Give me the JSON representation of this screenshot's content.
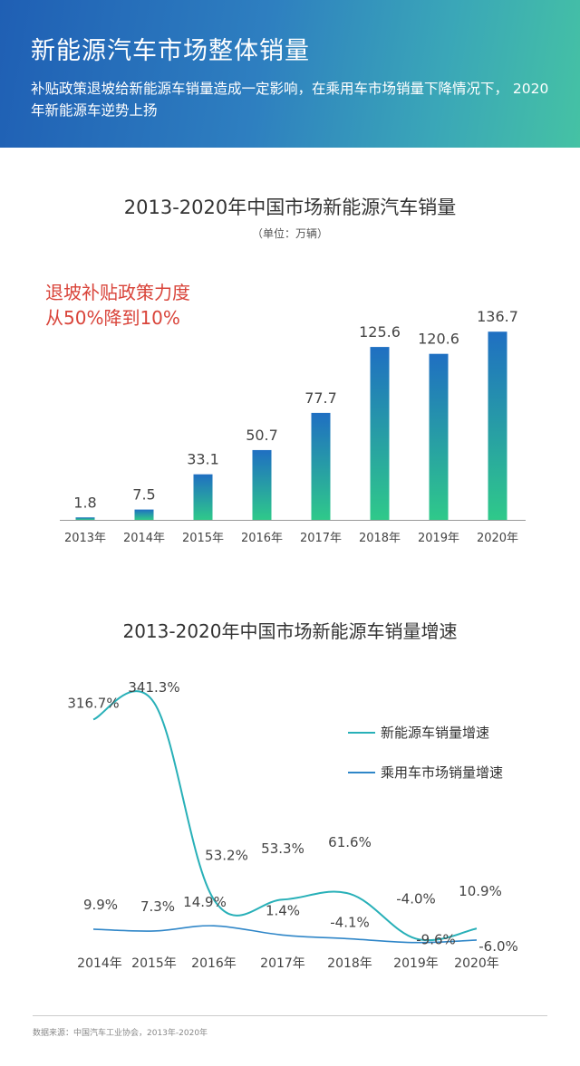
{
  "header": {
    "title": "新能源汽车市场整体销量",
    "subtitle": "补贴政策退坡给新能源车销量造成一定影响，在乘用车市场销量下降情况下， 2020年新能源车逆势上扬"
  },
  "annotation": {
    "line1": "退坡补贴政策力度",
    "line2": "从50%降到10%"
  },
  "colors": {
    "bar_top": "#1f6fc2",
    "bar_bottom": "#2fc98a",
    "ev_line": "#28b0b8",
    "pv_line": "#2f86c8"
  },
  "chart_data": [
    {
      "type": "bar",
      "title": "2013-2020年中国市场新能源汽车销量",
      "subtitle": "（单位：万辆）",
      "categories": [
        "2013年",
        "2014年",
        "2015年",
        "2016年",
        "2017年",
        "2018年",
        "2019年",
        "2020年"
      ],
      "values": [
        1.8,
        7.5,
        33.1,
        50.7,
        77.7,
        125.6,
        120.6,
        136.7
      ],
      "value_labels": [
        "1.8",
        "7.5",
        "33.1",
        "50.7",
        "77.7",
        "125.6",
        "120.6",
        "136.7"
      ],
      "ylim": [
        0,
        150
      ],
      "grid": false
    },
    {
      "type": "line",
      "title": "2013-2020年中国市场新能源车销量增速",
      "categories": [
        "2014年",
        "2015年",
        "2016年",
        "2017年",
        "2018年",
        "2019年",
        "2020年"
      ],
      "legend_position": "right",
      "series": [
        {
          "name": "新能源车销量增速",
          "values": [
            316.7,
            341.3,
            53.2,
            53.3,
            61.6,
            -4.0,
            10.9
          ],
          "labels": [
            "316.7%",
            "341.3%",
            "53.2%",
            "53.3%",
            "61.6%",
            "-4.0%",
            "10.9%"
          ]
        },
        {
          "name": "乘用车市场销量增速",
          "values": [
            9.9,
            7.3,
            14.9,
            1.4,
            -4.1,
            -9.6,
            -6.0
          ],
          "labels": [
            "9.9%",
            "7.3%",
            "14.9%",
            "1.4%",
            "-4.1%",
            "-9.6%",
            "-6.0%"
          ]
        }
      ]
    }
  ],
  "footer": {
    "source": "数据来源：中国汽车工业协会，2013年-2020年"
  }
}
